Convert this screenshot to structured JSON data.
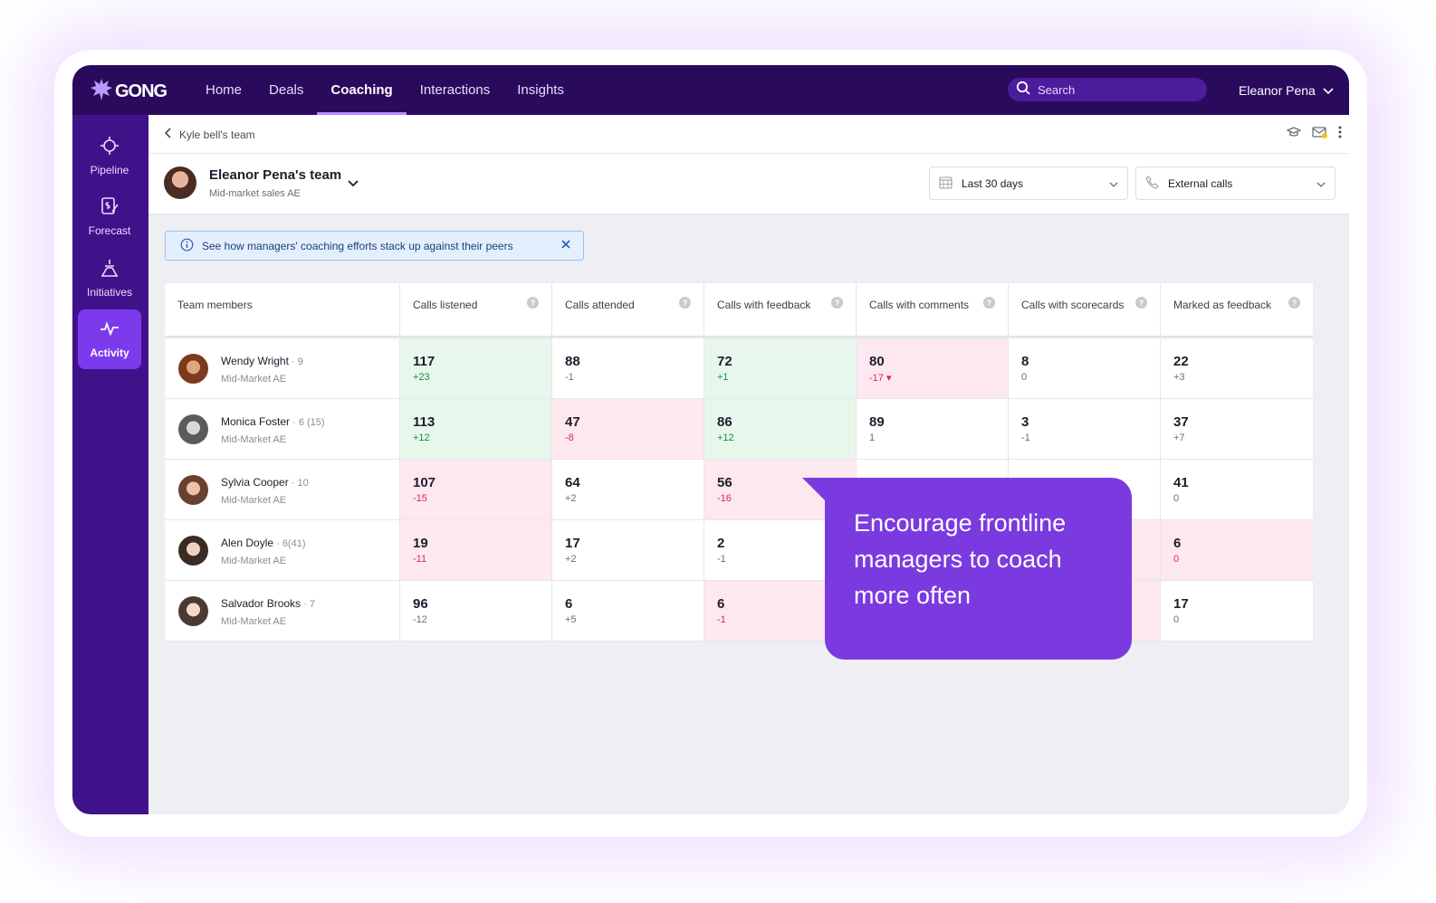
{
  "app": {
    "brand": "GONG"
  },
  "nav": {
    "items": [
      {
        "label": "Home",
        "active": false
      },
      {
        "label": "Deals",
        "active": false
      },
      {
        "label": "Coaching",
        "active": true
      },
      {
        "label": "Interactions",
        "active": false
      },
      {
        "label": "Insights",
        "active": false
      }
    ],
    "search_placeholder": "Search",
    "user_name": "Eleanor Pena"
  },
  "sidebar": {
    "items": [
      {
        "label": "Pipeline",
        "icon": "target-icon",
        "active": false
      },
      {
        "label": "Forecast",
        "icon": "forecast-icon",
        "active": false
      },
      {
        "label": "Initiatives",
        "icon": "initiatives-icon",
        "active": false
      },
      {
        "label": "Activity",
        "icon": "activity-icon",
        "active": true
      }
    ]
  },
  "breadcrumb": {
    "label": "Kyle bell's team"
  },
  "team": {
    "name": "Eleanor Pena's team",
    "subtitle": "Mid-market sales AE",
    "date_filter": "Last 30 days",
    "call_filter": "External calls"
  },
  "banner": {
    "text": "See how managers' coaching efforts stack up against their peers"
  },
  "table": {
    "headers": [
      "Team members",
      "Calls listened",
      "Calls attended",
      "Calls with feedback",
      "Calls with comments",
      "Calls with scorecards",
      "Marked as feedback"
    ],
    "rows": [
      {
        "name": "Wendy Wright",
        "count": "9",
        "role": "Mid-Market AE",
        "cells": [
          {
            "value": "117",
            "delta": "+23",
            "tone": "green"
          },
          {
            "value": "88",
            "delta": "-1",
            "tone": "none"
          },
          {
            "value": "72",
            "delta": "+1",
            "tone": "green"
          },
          {
            "value": "80",
            "delta": "-17 ▾",
            "tone": "red"
          },
          {
            "value": "8",
            "delta": "0",
            "tone": "none"
          },
          {
            "value": "22",
            "delta": "+3",
            "tone": "none"
          }
        ]
      },
      {
        "name": "Monica Foster",
        "count": "6 (15)",
        "role": "Mid-Market AE",
        "cells": [
          {
            "value": "113",
            "delta": "+12",
            "tone": "green"
          },
          {
            "value": "47",
            "delta": "-8",
            "tone": "red"
          },
          {
            "value": "86",
            "delta": "+12",
            "tone": "green"
          },
          {
            "value": "89",
            "delta": "1",
            "tone": "none"
          },
          {
            "value": "3",
            "delta": "-1",
            "tone": "none"
          },
          {
            "value": "37",
            "delta": "+7",
            "tone": "none"
          }
        ]
      },
      {
        "name": "Sylvia Cooper",
        "count": "10",
        "role": "Mid-Market AE",
        "cells": [
          {
            "value": "107",
            "delta": "-15",
            "tone": "red"
          },
          {
            "value": "64",
            "delta": "+2",
            "tone": "none"
          },
          {
            "value": "56",
            "delta": "-16",
            "tone": "red"
          },
          {
            "value": "",
            "delta": "",
            "tone": "none"
          },
          {
            "value": "",
            "delta": "",
            "tone": "none"
          },
          {
            "value": "41",
            "delta": "0",
            "tone": "none"
          }
        ]
      },
      {
        "name": "Alen Doyle",
        "count": "6(41)",
        "role": "Mid-Market AE",
        "cells": [
          {
            "value": "19",
            "delta": "-11",
            "tone": "red"
          },
          {
            "value": "17",
            "delta": "+2",
            "tone": "none"
          },
          {
            "value": "2",
            "delta": "-1",
            "tone": "none"
          },
          {
            "value": "",
            "delta": "",
            "tone": "none"
          },
          {
            "value": "",
            "delta": "",
            "tone": "red"
          },
          {
            "value": "6",
            "delta": "0",
            "tone": "red"
          }
        ]
      },
      {
        "name": "Salvador Brooks",
        "count": "7",
        "role": "Mid-Market AE",
        "cells": [
          {
            "value": "96",
            "delta": "-12",
            "tone": "none"
          },
          {
            "value": "6",
            "delta": "+5",
            "tone": "none"
          },
          {
            "value": "6",
            "delta": "-1",
            "tone": "red"
          },
          {
            "value": "",
            "delta": "",
            "tone": "none"
          },
          {
            "value": "",
            "delta": "",
            "tone": "red"
          },
          {
            "value": "17",
            "delta": "0",
            "tone": "none"
          }
        ]
      }
    ]
  },
  "callout": {
    "text": "Encourage frontline managers to coach more often"
  },
  "colors": {
    "nav_bg": "#2a0a5c",
    "sidebar_bg": "#40128a",
    "accent": "#7c3aed",
    "positive": "#1a8a48",
    "negative": "#d92560"
  }
}
